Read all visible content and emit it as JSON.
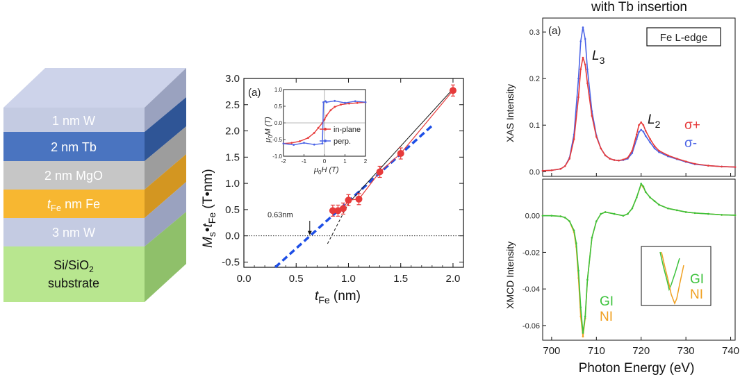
{
  "colors": {
    "blue": "#4a63e6",
    "red": "#e63a3a",
    "green": "#3cc23c",
    "orange": "#f0a020",
    "dashed_blue": "#1d4ee6",
    "layer_w": "#c9d0e6",
    "layer_tb": "#4a74c0",
    "layer_mgo": "#c9c9c9",
    "layer_fe": "#f7b731",
    "layer_sub": "#b8e68f"
  },
  "stack": {
    "layers": [
      {
        "label": "1 nm W",
        "color": "#c9d0e6",
        "text": "light"
      },
      {
        "label": "2 nm Tb",
        "color": "#4a74c0",
        "text": "light"
      },
      {
        "label": "2 nm MgO",
        "color": "#c9c9c9",
        "text": "light"
      },
      {
        "label_prefix": "t",
        "label_sub": "Fe",
        "label_suffix": " nm Fe",
        "color": "#f7b731",
        "text": "light"
      },
      {
        "label": "3 nm W",
        "color": "#c9d0e6",
        "text": "light"
      },
      {
        "label_line1": "Si/SiO",
        "label_line1_sub": "2",
        "label_line2": "substrate",
        "color": "#b8e68f",
        "text": "dark"
      }
    ]
  },
  "chart_data": [
    {
      "type": "scatter",
      "panel_label": "(a)",
      "xlabel_main": "t",
      "xlabel_sub": "Fe",
      "xlabel_unit": " (nm)",
      "ylabel_M": "M",
      "ylabel_Msub": "s",
      "ylabel_dot": "•",
      "ylabel_t": "t",
      "ylabel_tsub": "Fe",
      "ylabel_unit": " (T•nm)",
      "xlim": [
        0.0,
        2.1
      ],
      "ylim": [
        -0.6,
        3.0
      ],
      "xticks": [
        "0.0",
        "0.5",
        "1.0",
        "1.5",
        "2.0"
      ],
      "yticks": [
        "-0.5",
        "0.0",
        "0.5",
        "1.0",
        "1.5",
        "2.0",
        "2.5",
        "3.0"
      ],
      "points": [
        {
          "x": 0.85,
          "y": 0.48
        },
        {
          "x": 0.9,
          "y": 0.48
        },
        {
          "x": 0.95,
          "y": 0.52
        },
        {
          "x": 1.0,
          "y": 0.68
        },
        {
          "x": 1.1,
          "y": 0.7
        },
        {
          "x": 1.3,
          "y": 1.22
        },
        {
          "x": 1.5,
          "y": 1.57
        },
        {
          "x": 2.0,
          "y": 2.77
        }
      ],
      "fit_solid": [
        [
          1.0,
          0.62
        ],
        [
          2.0,
          2.8
        ]
      ],
      "fit_black_dashed": [
        [
          0.8,
          -0.15
        ],
        [
          1.0,
          0.62
        ]
      ],
      "fit_blue_dashed": [
        [
          0.3,
          -0.6
        ],
        [
          1.8,
          2.1
        ]
      ],
      "annotation": "0.63nm",
      "annotation_x": 0.63,
      "inset": {
        "xlabel_mu": "μ",
        "xlabel_sub": "0",
        "xlabel_rest": "H (T)",
        "ylabel_mu": "μ",
        "ylabel_sub": "0",
        "ylabel_rest": "M (T)",
        "xlim": [
          -2,
          2
        ],
        "ylim": [
          -1.0,
          1.0
        ],
        "xticks": [
          "-2",
          "-1",
          "0",
          "1",
          "2"
        ],
        "yticks": [
          "-1.0",
          "-0.5",
          "0.0",
          "0.5",
          "1.0"
        ],
        "legend": [
          "in-plane",
          "perp."
        ],
        "series": [
          {
            "name": "in-plane",
            "color": "#e63a3a",
            "x": [
              -2,
              -1.6,
              -1.2,
              -0.8,
              -0.5,
              -0.3,
              -0.1,
              0.0,
              0.1,
              0.3,
              0.5,
              0.8,
              1.2,
              1.6,
              2
            ],
            "y": [
              -0.62,
              -0.6,
              -0.55,
              -0.45,
              -0.3,
              -0.15,
              0.0,
              0.1,
              0.22,
              0.38,
              0.48,
              0.55,
              0.58,
              0.6,
              0.62
            ]
          },
          {
            "name": "perp.",
            "color": "#4a63e6",
            "x": [
              -2,
              -1.5,
              -1.0,
              -0.5,
              -0.1,
              -0.05,
              0.05,
              0.1,
              0.5,
              1.0,
              1.5,
              2
            ],
            "y": [
              -0.62,
              -0.66,
              -0.6,
              -0.65,
              -0.62,
              0.62,
              0.65,
              0.62,
              0.66,
              0.6,
              0.65,
              0.62
            ]
          }
        ]
      }
    },
    {
      "type": "line",
      "title": "with Tb insertion",
      "panel_label": "(a)",
      "box_label": "Fe L-edge",
      "ylabel": "XAS Intensity",
      "xlim": [
        698,
        741
      ],
      "ylim": [
        -0.01,
        0.33
      ],
      "yticks": [
        "0.0",
        "0.1",
        "0.2",
        "0.3"
      ],
      "peak_labels": [
        {
          "text": "L",
          "sub": "3"
        },
        {
          "text": "L",
          "sub": "2"
        }
      ],
      "legend": [
        "σ+",
        "σ-"
      ],
      "series": [
        {
          "name": "σ+",
          "color": "#e63a3a",
          "x": [
            698,
            700,
            702,
            703,
            704,
            705,
            706,
            706.5,
            707,
            707.5,
            708,
            709,
            710,
            711,
            712,
            713,
            714,
            715,
            716,
            717,
            718,
            719,
            719.5,
            720,
            720.5,
            721,
            722,
            723,
            724,
            726,
            728,
            730,
            732,
            735,
            738,
            741
          ],
          "y": [
            0.002,
            0.003,
            0.006,
            0.012,
            0.028,
            0.07,
            0.16,
            0.22,
            0.245,
            0.23,
            0.19,
            0.12,
            0.075,
            0.05,
            0.035,
            0.028,
            0.025,
            0.024,
            0.026,
            0.03,
            0.045,
            0.08,
            0.1,
            0.106,
            0.1,
            0.088,
            0.07,
            0.055,
            0.045,
            0.035,
            0.028,
            0.022,
            0.017,
            0.013,
            0.011,
            0.01
          ]
        },
        {
          "name": "σ-",
          "color": "#4a63e6",
          "x": [
            698,
            700,
            702,
            703,
            704,
            705,
            706,
            706.5,
            707,
            707.5,
            708,
            709,
            710,
            711,
            712,
            713,
            714,
            715,
            716,
            717,
            718,
            719,
            719.5,
            720,
            720.5,
            721,
            722,
            723,
            724,
            726,
            728,
            730,
            732,
            735,
            738,
            741
          ],
          "y": [
            0.002,
            0.003,
            0.006,
            0.012,
            0.03,
            0.08,
            0.2,
            0.28,
            0.31,
            0.285,
            0.22,
            0.13,
            0.078,
            0.05,
            0.035,
            0.028,
            0.025,
            0.024,
            0.025,
            0.028,
            0.04,
            0.07,
            0.085,
            0.09,
            0.086,
            0.077,
            0.063,
            0.05,
            0.042,
            0.033,
            0.027,
            0.021,
            0.016,
            0.013,
            0.011,
            0.01
          ]
        }
      ]
    },
    {
      "type": "line",
      "xlabel": "Photon Energy (eV)",
      "ylabel": "XMCD Intensity",
      "xlim": [
        698,
        741
      ],
      "ylim": [
        -0.068,
        0.02
      ],
      "xticks": [
        "700",
        "710",
        "720",
        "730",
        "740"
      ],
      "yticks": [
        "0.00",
        "-0.02",
        "-0.04",
        "-0.06"
      ],
      "legend": [
        "GI",
        "NI"
      ],
      "inset_legend": [
        "GI",
        "NI"
      ],
      "series": [
        {
          "name": "GI",
          "color": "#3cc23c",
          "x": [
            698,
            700,
            702,
            703,
            704,
            705,
            705.5,
            706,
            706.5,
            707,
            707.5,
            708,
            709,
            710,
            711,
            712,
            714,
            716,
            717,
            718,
            719,
            720,
            720.5,
            721,
            722,
            723,
            724,
            726,
            728,
            730,
            732,
            735,
            738,
            741
          ],
          "y": [
            0.0,
            0.0,
            -0.0003,
            -0.001,
            -0.003,
            -0.008,
            -0.015,
            -0.03,
            -0.05,
            -0.064,
            -0.055,
            -0.035,
            -0.012,
            -0.003,
            0.001,
            0.002,
            0.001,
            0.0,
            0.001,
            0.004,
            0.01,
            0.0175,
            0.016,
            0.013,
            0.01,
            0.008,
            0.006,
            0.004,
            0.003,
            0.002,
            0.0015,
            0.001,
            0.0005,
            0.0003
          ]
        },
        {
          "name": "NI",
          "color": "#f0a020",
          "x": [
            698,
            700,
            702,
            703,
            704,
            705,
            705.5,
            706,
            706.5,
            707,
            707.5,
            708,
            709,
            710,
            711,
            712,
            714,
            716,
            717,
            718,
            719,
            720,
            720.5,
            721,
            722,
            723,
            724,
            726,
            728,
            730,
            732,
            735,
            738,
            741
          ],
          "y": [
            0.0,
            0.0,
            -0.0003,
            -0.001,
            -0.003,
            -0.009,
            -0.017,
            -0.034,
            -0.055,
            -0.066,
            -0.056,
            -0.035,
            -0.012,
            -0.003,
            0.001,
            0.002,
            0.001,
            0.0,
            0.001,
            0.004,
            0.01,
            0.017,
            0.0155,
            0.013,
            0.01,
            0.008,
            0.006,
            0.004,
            0.003,
            0.002,
            0.0015,
            0.001,
            0.0005,
            0.0003
          ]
        }
      ]
    }
  ]
}
